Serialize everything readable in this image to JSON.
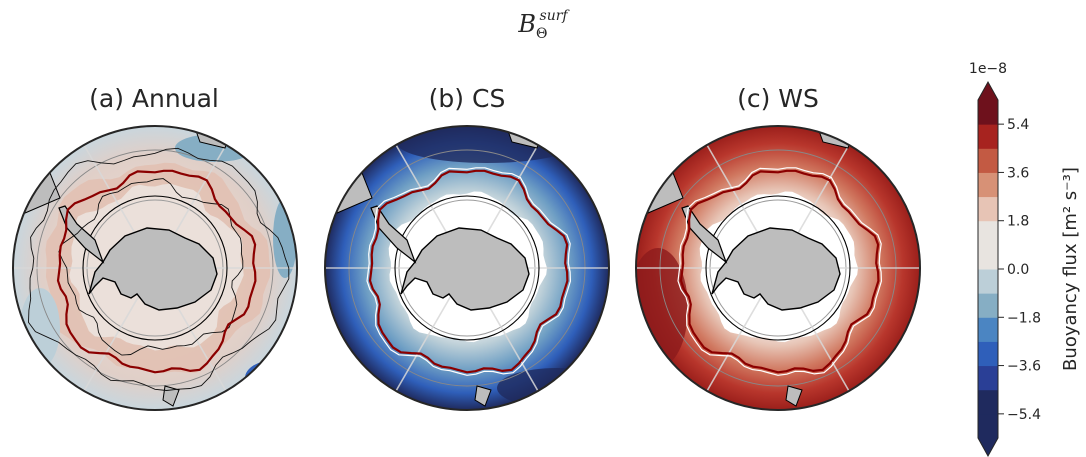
{
  "title_symbol": "B",
  "title_subscript": "Θ",
  "title_superscript": "surf",
  "panels": [
    {
      "title": "(a) Annual"
    },
    {
      "title": "(b) CS"
    },
    {
      "title": "(c) WS"
    }
  ],
  "colorbar": {
    "label": "Buoyancy flux [m² s⁻³]",
    "scale_factor": "1e−8",
    "ticks": [
      "5.4",
      "3.6",
      "1.8",
      "0.0",
      "−1.8",
      "−3.6",
      "−5.4"
    ],
    "tick_values": [
      5.4,
      3.6,
      1.8,
      0.0,
      -1.8,
      -3.6,
      -5.4
    ],
    "range": [
      -6.3,
      6.3
    ],
    "extend": "both",
    "cmap": [
      "#1f2a5e",
      "#2a3f96",
      "#2f5fba",
      "#4b85c2",
      "#86aec4",
      "#bccfd8",
      "#e8e4e0",
      "#e7c4b5",
      "#d79176",
      "#c35a43",
      "#a7231f",
      "#6e111c"
    ]
  },
  "chart_data": [
    {
      "type": "heatmap",
      "title": "(a) Annual",
      "projection": "south-polar-stereographic",
      "value_range": [
        -6.3,
        6.3
      ],
      "units": "1e-8 m2 s-3"
    },
    {
      "type": "heatmap",
      "title": "(b) CS",
      "projection": "south-polar-stereographic",
      "value_range": [
        -6.3,
        6.3
      ],
      "units": "1e-8 m2 s-3"
    },
    {
      "type": "heatmap",
      "title": "(c) WS",
      "projection": "south-polar-stereographic",
      "value_range": [
        -6.3,
        6.3
      ],
      "units": "1e-8 m2 s-3"
    }
  ],
  "colors": {
    "land": "#bdbdbd",
    "front_contour": "#8b0000",
    "coast": "#000000"
  }
}
